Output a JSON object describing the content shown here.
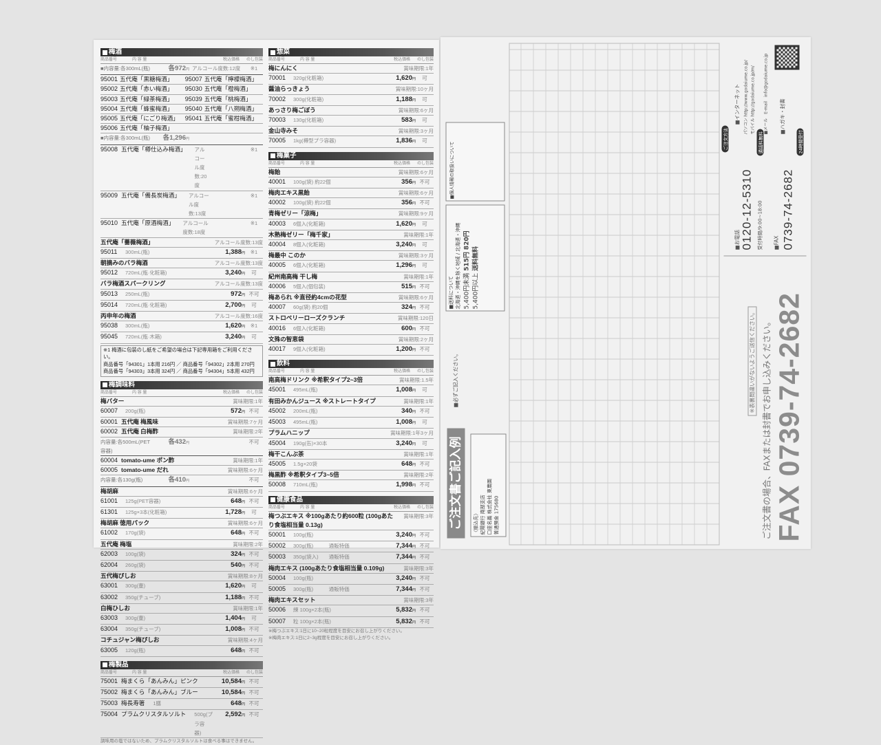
{
  "yen": "円",
  "colhead": [
    "商品番号",
    "内 容 量",
    "税込価格",
    "のし包装"
  ],
  "left_col": [
    {
      "title": "梅酒",
      "rows": [
        {
          "t": "info",
          "text": "■内容量:各300mL(瓶)",
          "price": "各972",
          "extra": "アルコール度数:12度",
          "mark": "※1"
        },
        {
          "t": "pair",
          "a": [
            "95001",
            "五代庵「黒糖梅酒」"
          ],
          "b": [
            "95007",
            "五代庵「檸檬梅酒」"
          ]
        },
        {
          "t": "pair",
          "a": [
            "95002",
            "五代庵「赤い梅酒」"
          ],
          "b": [
            "95030",
            "五代庵「橙梅酒」"
          ]
        },
        {
          "t": "pair",
          "a": [
            "95003",
            "五代庵「緑茶梅酒」"
          ],
          "b": [
            "95039",
            "五代庵「桃梅酒」"
          ]
        },
        {
          "t": "pair",
          "a": [
            "95004",
            "五代庵「蜂蜜梅酒」"
          ],
          "b": [
            "95040",
            "五代庵「八朔梅酒」"
          ]
        },
        {
          "t": "pair",
          "a": [
            "95005",
            "五代庵「にごり梅酒」"
          ],
          "b": [
            "95041",
            "五代庵「蜜柑梅酒」"
          ]
        },
        {
          "t": "pair",
          "a": [
            "95006",
            "五代庵「柚子梅酒」"
          ],
          "b": [
            "",
            ""
          ]
        },
        {
          "t": "info",
          "text": "■内容量:各300mL(瓶)",
          "price": "各1,296",
          "extra": "",
          "mark": ""
        },
        {
          "t": "item",
          "code": "95008",
          "name": "五代庵「樽仕込み梅酒」",
          "desc": "アルコール度数:20度",
          "price": "",
          "noshi": "※1"
        },
        {
          "t": "item",
          "code": "95009",
          "name": "五代庵「備長炭梅酒」",
          "desc": "アルコール度数:13度",
          "price": "",
          "noshi": "※1"
        },
        {
          "t": "item",
          "code": "95010",
          "name": "五代庵「原酒梅酒」",
          "desc": "アルコール度数:18度",
          "price": "",
          "noshi": "※1"
        },
        {
          "t": "group",
          "name": "五代庵「薔薇梅酒」",
          "note": "アルコール度数:13度"
        },
        {
          "t": "item",
          "code": "95011",
          "name": "",
          "desc": "300mL(瓶)",
          "price": "1,388",
          "noshi": "※1"
        },
        {
          "t": "group",
          "name": "朝摘みのバラ梅酒",
          "note": "アルコール度数:13度"
        },
        {
          "t": "item",
          "code": "95012",
          "name": "",
          "desc": "720mL(瓶·化粧箱)",
          "price": "3,240",
          "noshi": "可"
        },
        {
          "t": "group",
          "name": "バラ梅酒スパークリング",
          "note": "アルコール度数:13度"
        },
        {
          "t": "item",
          "code": "95013",
          "name": "",
          "desc": "250mL(瓶)",
          "price": "972",
          "noshi": "不可"
        },
        {
          "t": "item",
          "code": "95014",
          "name": "",
          "desc": "720mL(瓶·化粧箱)",
          "price": "2,700",
          "noshi": "可"
        },
        {
          "t": "group",
          "name": "丙申年の梅酒",
          "note": "アルコール度数:16度"
        },
        {
          "t": "item",
          "code": "95038",
          "name": "",
          "desc": "300mL(瓶)",
          "price": "1,620",
          "noshi": "※1"
        },
        {
          "t": "item",
          "code": "95045",
          "name": "",
          "desc": "720mL(瓶·木箱)",
          "price": "3,240",
          "noshi": "可"
        },
        {
          "t": "note",
          "lines": [
            "※1 梅酒に包装のし紙をご希望の場合は下記専用箱をご利用ください。",
            "商品番号「94301」1本用 216円 ／ 商品番号「94302」2本用 270円",
            "商品番号「94303」3本用 324円 ／ 商品番号「94304」5本用 432円"
          ]
        }
      ]
    },
    {
      "title": "梅調味料",
      "rows": [
        {
          "t": "group",
          "name": "梅バター",
          "note": "賞味期限:1年"
        },
        {
          "t": "item",
          "code": "60007",
          "name": "",
          "desc": "200g(瓶)",
          "price": "572",
          "noshi": "不可"
        },
        {
          "t": "group",
          "code": "60001",
          "name": "五代庵 梅風味",
          "note": "賞味期限:7ヶ月"
        },
        {
          "t": "group",
          "code": "60002",
          "name": "五代庵 白梅酢",
          "note": "賞味期限:2年"
        },
        {
          "t": "info",
          "text": "内容量:各500mL(PET容器)",
          "price": "各432",
          "extra": "",
          "mark": "不可"
        },
        {
          "t": "group",
          "code": "60004",
          "name": "tomato-ume ポン酢",
          "note": "賞味期限:1年"
        },
        {
          "t": "group",
          "code": "60005",
          "name": "tomato-ume だれ",
          "note": "賞味期限:6ヶ月"
        },
        {
          "t": "info",
          "text": "内容量:各130g(瓶)",
          "price": "各410",
          "extra": "",
          "mark": "不可"
        },
        {
          "t": "group",
          "name": "梅胡麻",
          "note": "賞味期限:6ヶ月"
        },
        {
          "t": "item",
          "code": "61001",
          "name": "",
          "desc": "125g(PET容器)",
          "price": "648",
          "noshi": "不可"
        },
        {
          "t": "item",
          "code": "61301",
          "name": "",
          "desc": "125g×3本(化粧箱)",
          "price": "1,728",
          "noshi": "可"
        },
        {
          "t": "group",
          "name": "梅胡麻 徳用パック",
          "note": "賞味期限:6ヶ月"
        },
        {
          "t": "item",
          "code": "61002",
          "name": "",
          "desc": "170g(袋)",
          "price": "648",
          "noshi": "不可"
        },
        {
          "t": "group",
          "name": "五代庵 梅塩",
          "note": "賞味期限:2年"
        },
        {
          "t": "item",
          "code": "62003",
          "name": "",
          "desc": "100g(袋)",
          "price": "324",
          "noshi": "不可"
        },
        {
          "t": "item",
          "code": "62004",
          "name": "",
          "desc": "260g(袋)",
          "price": "540",
          "noshi": "不可"
        },
        {
          "t": "group",
          "name": "五代梅ぴしお",
          "note": "賞味期限:8ヶ月"
        },
        {
          "t": "item",
          "code": "63001",
          "name": "",
          "desc": "300g(壷)",
          "price": "1,620",
          "noshi": "可"
        },
        {
          "t": "item",
          "code": "63002",
          "name": "",
          "desc": "350g(チューブ)",
          "price": "1,188",
          "noshi": "不可"
        },
        {
          "t": "group",
          "name": "白梅ひしお",
          "note": "賞味期限:1年"
        },
        {
          "t": "item",
          "code": "63003",
          "name": "",
          "desc": "300g(壷)",
          "price": "1,404",
          "noshi": "可"
        },
        {
          "t": "item",
          "code": "63004",
          "name": "",
          "desc": "350g(チューブ)",
          "price": "1,008",
          "noshi": "不可"
        },
        {
          "t": "group",
          "name": "コチュジャン梅ぴしお",
          "note": "賞味期限:4ヶ月"
        },
        {
          "t": "item",
          "code": "63005",
          "name": "",
          "desc": "120g(瓶)",
          "price": "648",
          "noshi": "不可"
        }
      ]
    },
    {
      "title": "梅製品",
      "rows": [
        {
          "t": "item",
          "code": "75001",
          "name": "梅まくら「あんみん」ピンク",
          "desc": "",
          "price": "10,584",
          "noshi": "不可"
        },
        {
          "t": "item",
          "code": "75002",
          "name": "梅まくら「あんみん」ブルー",
          "desc": "",
          "price": "10,584",
          "noshi": "不可"
        },
        {
          "t": "item",
          "code": "75003",
          "name": "梅長寿箸",
          "desc": "1膳",
          "price": "648",
          "noshi": "不可"
        },
        {
          "t": "item",
          "code": "75004",
          "name": "プラムクリスタルソルト",
          "desc": "500g(プラ容器)",
          "price": "2,592",
          "noshi": "不可"
        },
        {
          "t": "foot",
          "text": "調味用の塩ではないため、プラムクリスタルソルトは食べる事はできません。"
        }
      ]
    }
  ],
  "right_col": [
    {
      "title": "惣菜",
      "rows": [
        {
          "t": "group",
          "name": "梅にんにく",
          "note": "賞味期限:1年"
        },
        {
          "t": "item",
          "code": "70001",
          "name": "",
          "desc": "320g(化粧箱)",
          "price": "1,620",
          "noshi": "可"
        },
        {
          "t": "group",
          "name": "醤油らっきょう",
          "note": "賞味期限:10ヶ月"
        },
        {
          "t": "item",
          "code": "70002",
          "name": "",
          "desc": "300g(化粧箱)",
          "price": "1,188",
          "noshi": "可"
        },
        {
          "t": "group",
          "name": "あっさり梅ごぼう",
          "note": "賞味期限:6ヶ月"
        },
        {
          "t": "item",
          "code": "70003",
          "name": "",
          "desc": "130g(化粧箱)",
          "price": "583",
          "noshi": "可"
        },
        {
          "t": "group",
          "name": "金山寺みそ",
          "note": "賞味期限:3ヶ月"
        },
        {
          "t": "item",
          "code": "70005",
          "name": "",
          "desc": "1kg(樽型プラ容器)",
          "price": "1,836",
          "noshi": "可"
        }
      ]
    },
    {
      "title": "梅菓子",
      "rows": [
        {
          "t": "group",
          "name": "梅飴",
          "note": "賞味期限:6ヶ月"
        },
        {
          "t": "item",
          "code": "40001",
          "name": "",
          "desc": "100g(袋) 約22個",
          "price": "356",
          "noshi": "不可"
        },
        {
          "t": "group",
          "name": "梅肉エキス黒飴",
          "note": "賞味期限:6ヶ月"
        },
        {
          "t": "item",
          "code": "40002",
          "name": "",
          "desc": "100g(袋) 約22個",
          "price": "356",
          "noshi": "不可"
        },
        {
          "t": "group",
          "name": "青梅ゼリー「涼梅」",
          "note": "賞味期限:9ヶ月"
        },
        {
          "t": "item",
          "code": "40003",
          "name": "",
          "desc": "6個入(化粧箱)",
          "price": "1,620",
          "noshi": "可"
        },
        {
          "t": "group",
          "name": "木熟梅ゼリー「梅千家」",
          "note": "賞味期限:1年"
        },
        {
          "t": "item",
          "code": "40004",
          "name": "",
          "desc": "8個入(化粧箱)",
          "price": "3,240",
          "noshi": "可"
        },
        {
          "t": "group",
          "name": "梅最中 このか",
          "note": "賞味期限:3ヶ月"
        },
        {
          "t": "item",
          "code": "40005",
          "name": "",
          "desc": "6個入(化粧箱)",
          "price": "1,296",
          "noshi": "可"
        },
        {
          "t": "group",
          "name": "紀州南高梅 干し梅",
          "note": "賞味期限:1年"
        },
        {
          "t": "item",
          "code": "40006",
          "name": "",
          "desc": "5個入(個包装)",
          "price": "515",
          "noshi": "不可"
        },
        {
          "t": "group",
          "name": "梅あられ ※直径約4cmの花型",
          "note": "賞味期限:6ヶ月"
        },
        {
          "t": "item",
          "code": "40007",
          "name": "",
          "desc": "60g(袋) 約20個",
          "price": "324",
          "noshi": "不可"
        },
        {
          "t": "group",
          "name": "ストロベリーローズクランチ",
          "note": "賞味期限:120日"
        },
        {
          "t": "item",
          "code": "40016",
          "name": "",
          "desc": "6個入(化粧箱)",
          "price": "600",
          "noshi": "不可"
        },
        {
          "t": "group",
          "name": "文殊の智恵袋",
          "note": "賞味期限:2ヶ月"
        },
        {
          "t": "item",
          "code": "40017",
          "name": "",
          "desc": "9個入(化粧箱)",
          "price": "1,200",
          "noshi": "不可"
        }
      ]
    },
    {
      "title": "飲料",
      "rows": [
        {
          "t": "group",
          "name": "南高梅ドリンク ※希釈タイプ2~3倍",
          "note": "賞味期限:1.5年"
        },
        {
          "t": "item",
          "code": "45001",
          "name": "",
          "desc": "495mL(瓶)",
          "price": "1,008",
          "noshi": "可"
        },
        {
          "t": "group",
          "name": "有田みかんジュース ※ストレートタイプ",
          "note": "賞味期限:1年"
        },
        {
          "t": "item",
          "code": "45002",
          "name": "",
          "desc": "200mL(瓶)",
          "price": "340",
          "noshi": "不可"
        },
        {
          "t": "item",
          "code": "45003",
          "name": "",
          "desc": "495mL(瓶)",
          "price": "1,008",
          "noshi": "可"
        },
        {
          "t": "group",
          "name": "プラムハニップ",
          "note": "賞味期限:1年3ヶ月"
        },
        {
          "t": "item",
          "code": "45004",
          "name": "",
          "desc": "190g(缶)×30本",
          "price": "3,240",
          "noshi": "可"
        },
        {
          "t": "group",
          "name": "梅干こんぶ茶",
          "note": "賞味期限:1年"
        },
        {
          "t": "item",
          "code": "45005",
          "name": "",
          "desc": "1.5g×20袋",
          "price": "648",
          "noshi": "不可"
        },
        {
          "t": "group",
          "name": "梅黒酢 ※希釈タイプ3~5倍",
          "note": "賞味期限:2年"
        },
        {
          "t": "item",
          "code": "50008",
          "name": "",
          "desc": "710mL(瓶)",
          "price": "1,998",
          "noshi": "不可"
        }
      ]
    },
    {
      "title": "健康食品",
      "rows": [
        {
          "t": "group",
          "name": "梅つぶエキス ※100gあたり約600粒 (100gあたり食塩相当量 0.13g)",
          "note": "賞味期限:3年"
        },
        {
          "t": "item",
          "code": "50001",
          "name": "",
          "desc": "100g(瓶)",
          "price": "3,240",
          "noshi": "不可"
        },
        {
          "t": "item",
          "code": "50002",
          "name": "",
          "desc": "300g(瓶)　　　通販特価",
          "price": "7,344",
          "noshi": "不可"
        },
        {
          "t": "item",
          "code": "50003",
          "name": "",
          "desc": "350g(袋入)　　通販特価",
          "price": "7,344",
          "noshi": "不可"
        },
        {
          "t": "group",
          "name": "梅肉エキス (100gあたり食塩相当量 0.109g)",
          "note": "賞味期限:3年"
        },
        {
          "t": "item",
          "code": "50004",
          "name": "",
          "desc": "100g(瓶)",
          "price": "3,240",
          "noshi": "不可"
        },
        {
          "t": "item",
          "code": "50005",
          "name": "",
          "desc": "300g(瓶)　　　通販特価",
          "price": "7,344",
          "noshi": "不可"
        },
        {
          "t": "group",
          "name": "梅肉エキスセット",
          "note": "賞味期限:3年"
        },
        {
          "t": "item",
          "code": "50006",
          "name": "",
          "desc": "練 100g×2本(瓶)",
          "price": "5,832",
          "noshi": "不可"
        },
        {
          "t": "item",
          "code": "50007",
          "name": "",
          "desc": "粒 100g×2本(瓶)",
          "price": "5,832",
          "noshi": "不可"
        },
        {
          "t": "foot",
          "text": "※梅つぶエキス:1日に10~20粒程度を目安にお召し上がりください。"
        },
        {
          "t": "foot",
          "text": "※梅肉エキス:1日に2~3g程度を目安にお召し上がりください。"
        }
      ]
    }
  ],
  "order_form": {
    "title": "ご注文書ご記入例",
    "fax_big": "FAX 0739-74-2682",
    "fax_instruction": "ご注文書の場合、FAXまたは封書でお申し込みください。",
    "fax_warning": "※表裏間違いがないようご送信ください。",
    "method_label": "ご注文方法",
    "phone_label": "■お電話",
    "phone_number": "0120-12-5310",
    "phone_badge": "通話料無料",
    "phone_hours": "受付時間/9:00~18:00",
    "fax_label": "■FAX",
    "fax_number": "0739-74-2682",
    "fax_badge": "24時間受付",
    "internet_label": "■インターネット",
    "internet_pc": "パソコン http://www.godaiume.co.jp/",
    "internet_mobile": "モバイル http://godaiume.co.jp/m/",
    "mail_label": "■メール　E-mail　info@godaiume.co.jp",
    "postcard_label": "■ハガキ・封書",
    "shipping": {
      "title": "■送料について",
      "col1": "北海道・沖縄を除く地域",
      "col2": "北海道・沖縄",
      "row1": "5,400円未満",
      "v1": "515円",
      "v2": "820円",
      "row2": "5,400円以上",
      "v3": "送料無料"
    },
    "privacy_title": "■個人情報の取扱いについて",
    "instruction_required": "■必ずご記入ください。",
    "bank": {
      "label": "〈振込先〉",
      "bank": "紀陽銀行 南部支店",
      "holder": "口座名義 株式会社 東農園",
      "account": "普通預金 175680"
    }
  }
}
